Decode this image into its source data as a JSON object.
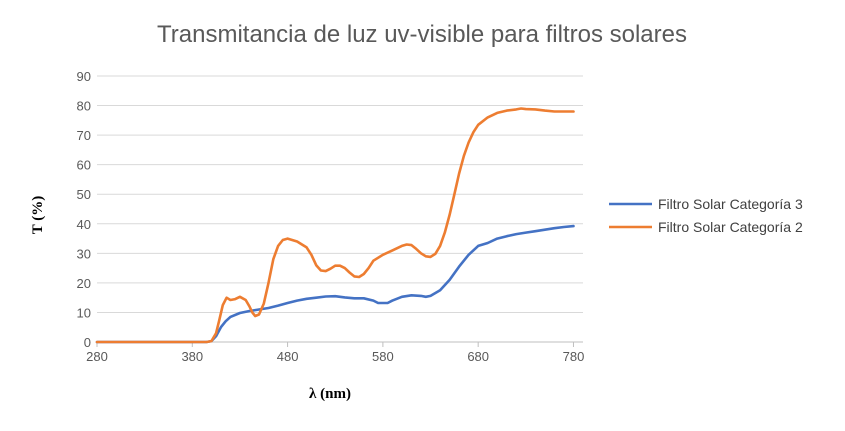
{
  "chart_data": {
    "type": "line",
    "title": "Transmitancia de luz uv-visible para filtros solares",
    "xlabel": "λ (nm)",
    "ylabel": "T (%)",
    "xlim": [
      280,
      790
    ],
    "ylim": [
      0,
      90
    ],
    "xticks": [
      280,
      380,
      480,
      580,
      680,
      780
    ],
    "yticks": [
      0,
      10,
      20,
      30,
      40,
      50,
      60,
      70,
      80,
      90
    ],
    "grid": true,
    "legend_position": "right",
    "series": [
      {
        "name": "Filtro Solar Categoría 3",
        "color": "#4472C4",
        "points": [
          [
            280,
            0
          ],
          [
            300,
            0
          ],
          [
            320,
            0
          ],
          [
            340,
            0
          ],
          [
            360,
            0
          ],
          [
            380,
            0
          ],
          [
            395,
            0
          ],
          [
            400,
            0.3
          ],
          [
            405,
            2
          ],
          [
            410,
            5
          ],
          [
            415,
            7
          ],
          [
            420,
            8.5
          ],
          [
            430,
            9.8
          ],
          [
            440,
            10.5
          ],
          [
            450,
            11
          ],
          [
            460,
            11.5
          ],
          [
            470,
            12.3
          ],
          [
            480,
            13.2
          ],
          [
            490,
            14
          ],
          [
            500,
            14.6
          ],
          [
            510,
            15
          ],
          [
            520,
            15.4
          ],
          [
            530,
            15.5
          ],
          [
            540,
            15.1
          ],
          [
            550,
            14.8
          ],
          [
            560,
            14.8
          ],
          [
            570,
            14
          ],
          [
            575,
            13.2
          ],
          [
            585,
            13.2
          ],
          [
            590,
            14
          ],
          [
            600,
            15.3
          ],
          [
            610,
            15.8
          ],
          [
            620,
            15.6
          ],
          [
            625,
            15.3
          ],
          [
            630,
            15.6
          ],
          [
            640,
            17.5
          ],
          [
            650,
            21
          ],
          [
            660,
            25.5
          ],
          [
            670,
            29.5
          ],
          [
            680,
            32.5
          ],
          [
            690,
            33.5
          ],
          [
            700,
            35
          ],
          [
            710,
            35.8
          ],
          [
            720,
            36.5
          ],
          [
            730,
            37
          ],
          [
            740,
            37.5
          ],
          [
            750,
            38
          ],
          [
            760,
            38.5
          ],
          [
            770,
            38.9
          ],
          [
            780,
            39.2
          ]
        ]
      },
      {
        "name": "Filtro Solar Categoría 2",
        "color": "#ED7D31",
        "points": [
          [
            280,
            0
          ],
          [
            300,
            0
          ],
          [
            320,
            0
          ],
          [
            340,
            0
          ],
          [
            360,
            0
          ],
          [
            380,
            0
          ],
          [
            395,
            0
          ],
          [
            400,
            0.3
          ],
          [
            405,
            3
          ],
          [
            408,
            7
          ],
          [
            412,
            12.5
          ],
          [
            416,
            15
          ],
          [
            420,
            14.2
          ],
          [
            425,
            14.5
          ],
          [
            430,
            15.3
          ],
          [
            436,
            14.2
          ],
          [
            440,
            12
          ],
          [
            443,
            10
          ],
          [
            446,
            8.8
          ],
          [
            450,
            9.3
          ],
          [
            455,
            13
          ],
          [
            460,
            20
          ],
          [
            465,
            28
          ],
          [
            470,
            32.5
          ],
          [
            475,
            34.5
          ],
          [
            480,
            35
          ],
          [
            490,
            34
          ],
          [
            500,
            32
          ],
          [
            505,
            29.5
          ],
          [
            510,
            26
          ],
          [
            515,
            24.2
          ],
          [
            520,
            24
          ],
          [
            525,
            24.8
          ],
          [
            530,
            25.8
          ],
          [
            535,
            25.8
          ],
          [
            540,
            25
          ],
          [
            545,
            23.5
          ],
          [
            550,
            22.2
          ],
          [
            555,
            22
          ],
          [
            560,
            23
          ],
          [
            565,
            25
          ],
          [
            570,
            27.5
          ],
          [
            580,
            29.5
          ],
          [
            590,
            31
          ],
          [
            600,
            32.5
          ],
          [
            605,
            33
          ],
          [
            610,
            32.8
          ],
          [
            615,
            31.5
          ],
          [
            620,
            30
          ],
          [
            625,
            29
          ],
          [
            630,
            28.8
          ],
          [
            635,
            29.8
          ],
          [
            640,
            32.5
          ],
          [
            645,
            37
          ],
          [
            650,
            43
          ],
          [
            655,
            50
          ],
          [
            660,
            57
          ],
          [
            665,
            63
          ],
          [
            670,
            67.5
          ],
          [
            675,
            71
          ],
          [
            680,
            73.5
          ],
          [
            690,
            76
          ],
          [
            700,
            77.5
          ],
          [
            710,
            78.3
          ],
          [
            720,
            78.7
          ],
          [
            725,
            79
          ],
          [
            730,
            78.8
          ],
          [
            740,
            78.7
          ],
          [
            750,
            78.3
          ],
          [
            760,
            78
          ],
          [
            770,
            78
          ],
          [
            780,
            78
          ]
        ]
      }
    ]
  }
}
